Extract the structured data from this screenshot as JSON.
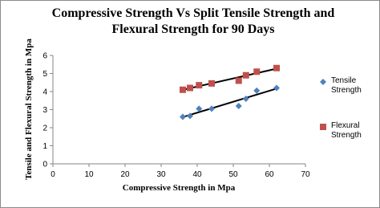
{
  "chart_data": {
    "type": "scatter",
    "title": "Compressive Strength Vs Split Tensile Strength and Flexural Strength for 90 Days",
    "x_label": "Compressive Strength in Mpa",
    "y_label": "Tensile and Flexural Strength in Mpa",
    "xlim": [
      0,
      70
    ],
    "xticks": [
      0,
      10,
      20,
      30,
      40,
      50,
      60,
      70
    ],
    "ylim": [
      0,
      6
    ],
    "yticks": [
      0,
      1,
      2,
      3,
      4,
      5,
      6
    ],
    "grid": false,
    "trendline": true,
    "legend": "right",
    "series": [
      {
        "name": "Tensile Strength",
        "color": "#4f81bd",
        "marker": "diamond",
        "x": [
          36,
          38,
          40.5,
          44,
          51.5,
          53.5,
          56.5,
          62
        ],
        "values": [
          2.6,
          2.65,
          3.05,
          3.05,
          3.2,
          3.6,
          4.05,
          4.2
        ]
      },
      {
        "name": "Flexural Strength",
        "color": "#c0504d",
        "marker": "square",
        "x": [
          36,
          38,
          40.5,
          44,
          51.5,
          53.5,
          56.5,
          62
        ],
        "values": [
          4.1,
          4.2,
          4.35,
          4.45,
          4.6,
          4.9,
          5.1,
          5.3
        ]
      }
    ]
  }
}
